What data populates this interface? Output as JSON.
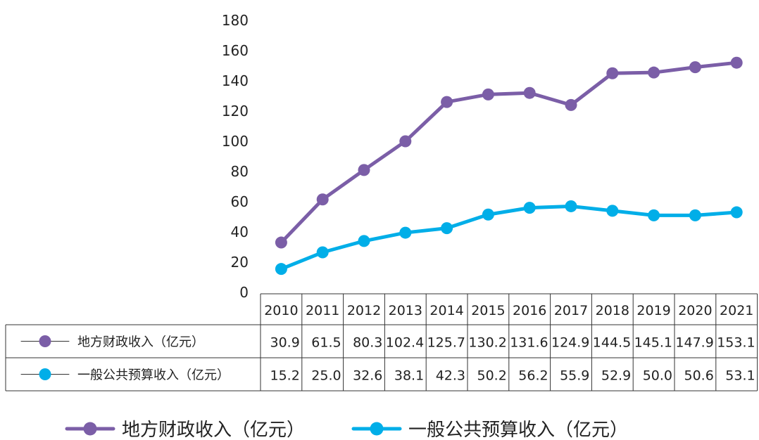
{
  "chart_data": {
    "type": "line",
    "title": "",
    "xlabel": "",
    "ylabel": "",
    "ylim": [
      0,
      180
    ],
    "yticks": [
      "0",
      "20",
      "40",
      "60",
      "80",
      "100",
      "120",
      "140",
      "160",
      "180"
    ],
    "grid": false,
    "legend_position": "bottom",
    "categories": [
      "2010",
      "2011",
      "2012",
      "2013",
      "2014",
      "2015",
      "2016",
      "2017",
      "2018",
      "2019",
      "2020",
      "2021"
    ],
    "series": [
      {
        "name": "地方财政收入（亿元）",
        "color": "#7b5ea7",
        "values": [
          33,
          61.5,
          81,
          100,
          126,
          131,
          132,
          124,
          145,
          145.5,
          149,
          152
        ],
        "table_values": [
          "30.9",
          "61.5",
          "80.3",
          "102.4",
          "125.7",
          "130.2",
          "131.6",
          "124.9",
          "144.5",
          "145.1",
          "147.9",
          "153.1"
        ]
      },
      {
        "name": "一般公共预算收入（亿元）",
        "color": "#00aee8",
        "values": [
          15.5,
          26.5,
          34,
          39.5,
          42.5,
          51.5,
          56,
          57,
          54,
          51,
          51,
          53
        ],
        "table_values": [
          "15.2",
          "25.0",
          "32.6",
          "38.1",
          "42.3",
          "50.2",
          "56.2",
          "55.9",
          "52.9",
          "50.0",
          "50.6",
          "53.1"
        ]
      }
    ]
  }
}
